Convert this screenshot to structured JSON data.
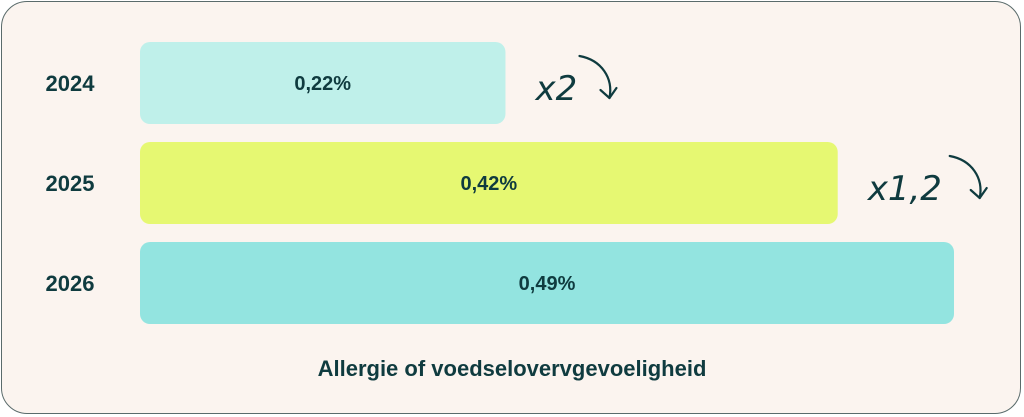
{
  "chart_data": {
    "type": "bar",
    "orientation": "horizontal",
    "categories": [
      "2024",
      "2025",
      "2026"
    ],
    "values": [
      0.22,
      0.42,
      0.49
    ],
    "value_labels": [
      "0,22%",
      "0,42%",
      "0,49%"
    ],
    "bar_colors": [
      "#bff0ea",
      "#e6f872",
      "#93e4e0"
    ],
    "annotations": [
      "x2",
      "x1,2"
    ],
    "xlabel": "Allergie of voedselovervgevoeligheid",
    "xlim": [
      0,
      0.49
    ],
    "grid": false,
    "legend": "none"
  },
  "colors": {
    "background": "#fbf4ef",
    "text": "#0f3b3f",
    "border": "#5a6b6b"
  }
}
